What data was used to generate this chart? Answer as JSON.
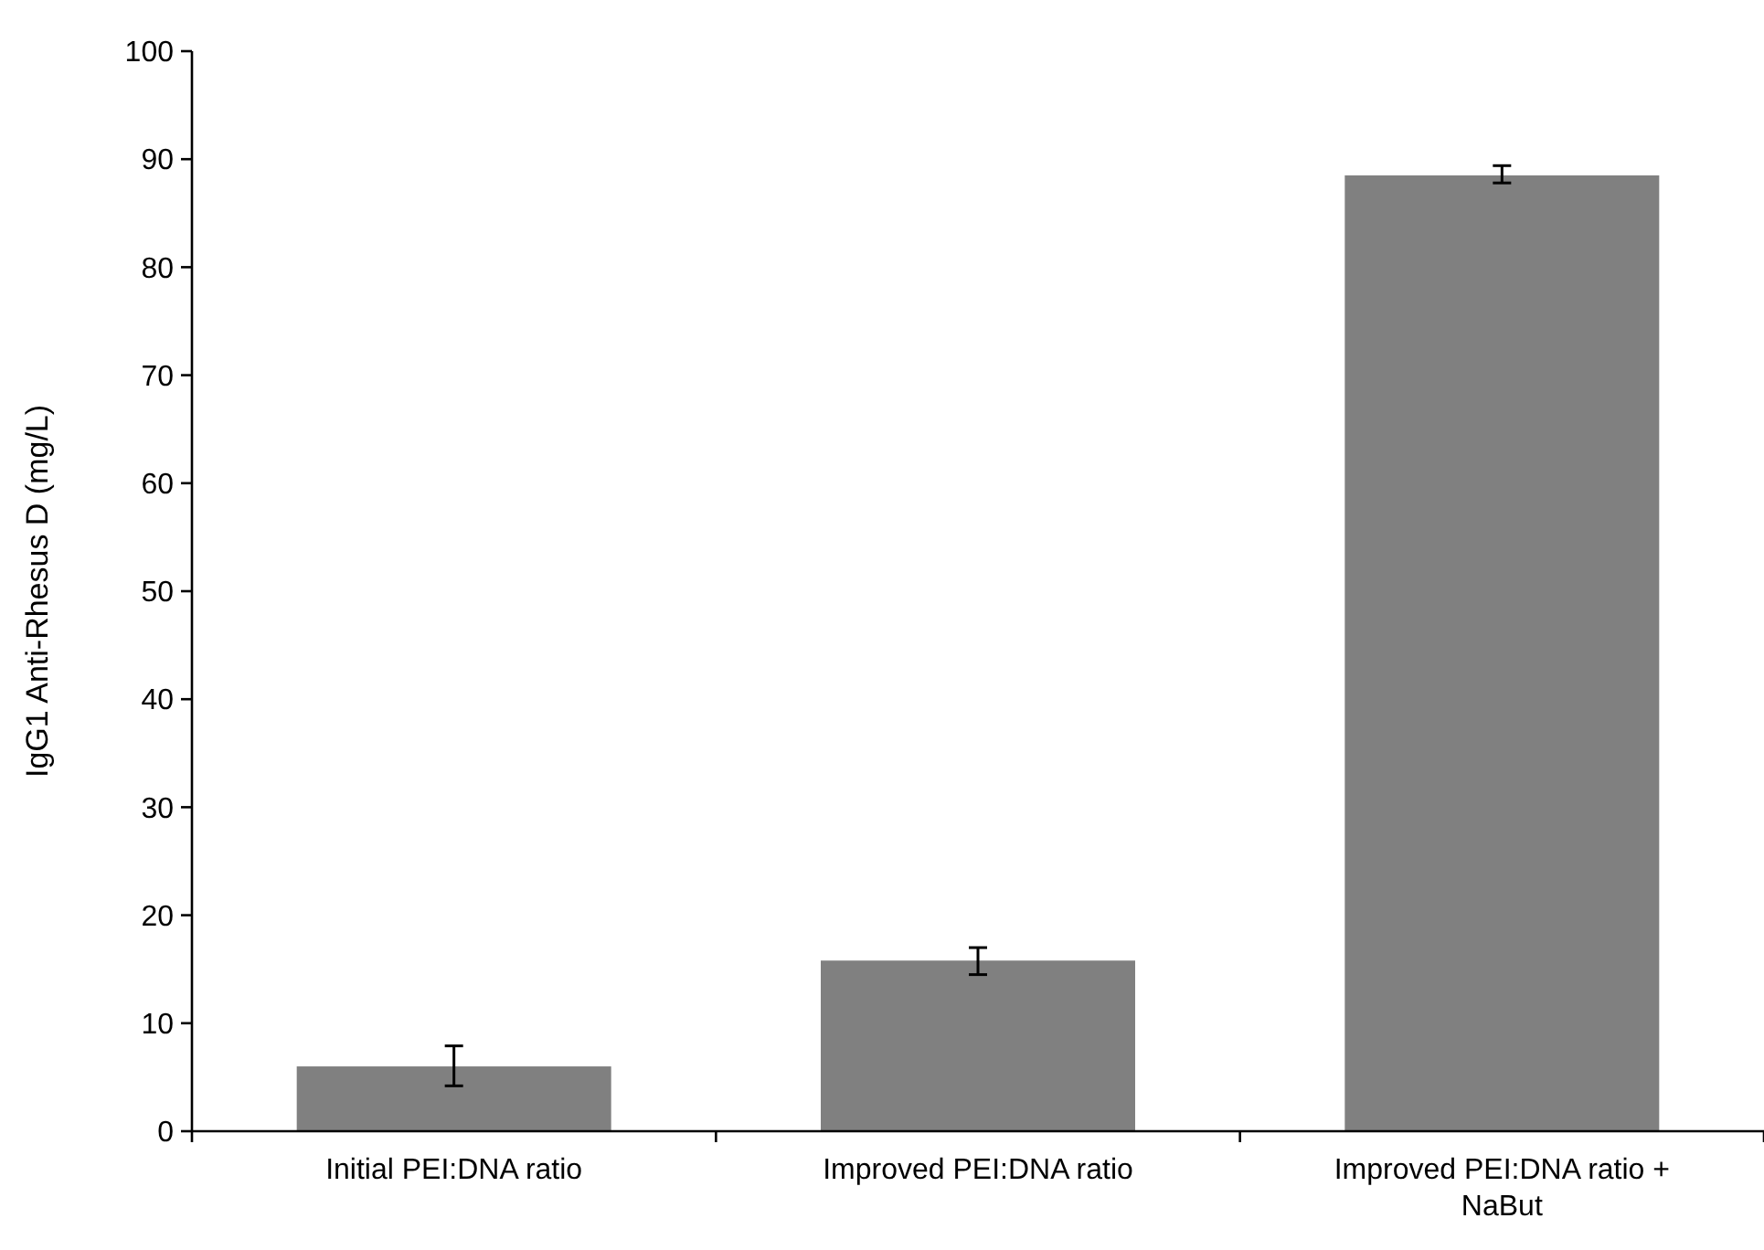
{
  "chart_data": {
    "type": "bar",
    "ylabel": "IgG1 Anti-Rhesus D (mg/L)",
    "categories": [
      "Initial PEI:DNA ratio",
      "Improved PEI:DNA ratio",
      "Improved PEI:DNA ratio + NaBut"
    ],
    "values": [
      6.0,
      15.8,
      88.5
    ],
    "errors": [
      [
        4.2,
        7.9
      ],
      [
        14.5,
        17.0
      ],
      [
        87.8,
        89.4
      ]
    ],
    "color": "#808080",
    "ylim": [
      0,
      100
    ],
    "yticks": [
      0,
      10,
      20,
      30,
      40,
      50,
      60,
      70,
      80,
      90,
      100
    ]
  }
}
